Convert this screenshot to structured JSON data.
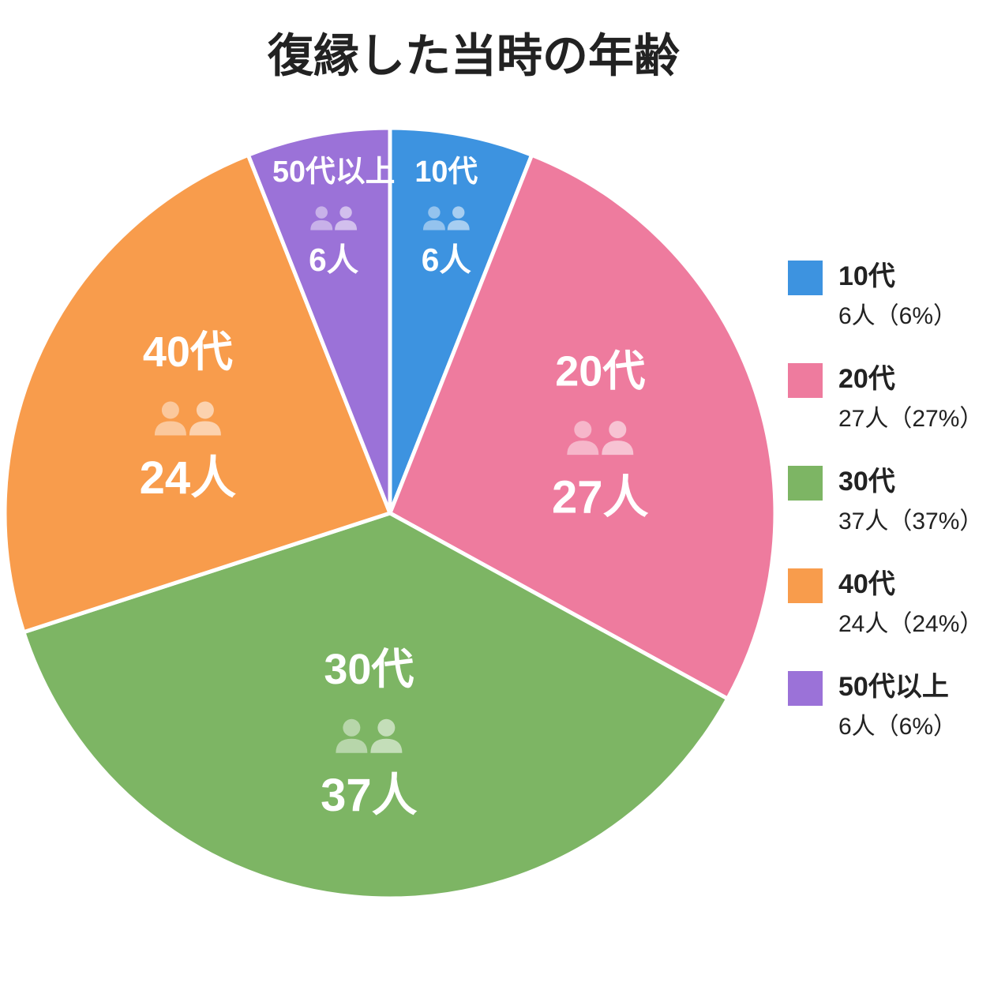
{
  "chart_data": {
    "type": "pie",
    "title": "復縁した当時の年齢",
    "categories": [
      "10代",
      "20代",
      "30代",
      "40代",
      "50代以上"
    ],
    "values": [
      6,
      27,
      37,
      24,
      6
    ],
    "value_labels": [
      "6人",
      "27人",
      "37人",
      "24人",
      "6人"
    ],
    "legend_value_labels": [
      "6人（6%）",
      "27人（27%）",
      "37人（37%）",
      "24人（24%）",
      "6人（6%）"
    ],
    "colors": [
      "#3d93e0",
      "#ee7b9e",
      "#7db564",
      "#f89c4c",
      "#9b72d8"
    ],
    "legend": "right"
  }
}
